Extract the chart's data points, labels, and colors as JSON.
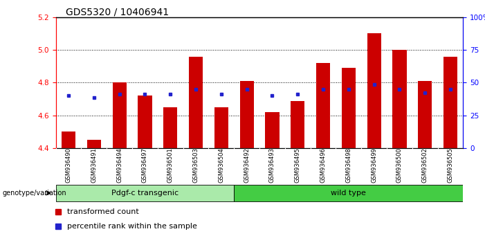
{
  "title": "GDS5320 / 10406941",
  "samples": [
    "GSM936490",
    "GSM936491",
    "GSM936494",
    "GSM936497",
    "GSM936501",
    "GSM936503",
    "GSM936504",
    "GSM936492",
    "GSM936493",
    "GSM936495",
    "GSM936496",
    "GSM936498",
    "GSM936499",
    "GSM936500",
    "GSM936502",
    "GSM936505"
  ],
  "bar_heights": [
    4.5,
    4.45,
    4.8,
    4.72,
    4.65,
    4.96,
    4.65,
    4.81,
    4.62,
    4.69,
    4.92,
    4.89,
    5.1,
    5.0,
    4.81,
    4.96
  ],
  "percentile_values": [
    4.72,
    4.71,
    4.73,
    4.73,
    4.73,
    4.76,
    4.73,
    4.76,
    4.72,
    4.73,
    4.76,
    4.76,
    4.79,
    4.76,
    4.74,
    4.76
  ],
  "bar_bottom": 4.4,
  "ylim_left": [
    4.4,
    5.2
  ],
  "ylim_right": [
    0,
    100
  ],
  "yticks_left": [
    4.4,
    4.6,
    4.8,
    5.0,
    5.2
  ],
  "yticks_right": [
    0,
    25,
    50,
    75,
    100
  ],
  "ytick_right_labels": [
    "0",
    "25",
    "50",
    "75",
    "100%"
  ],
  "bar_color": "#cc0000",
  "percentile_color": "#2222cc",
  "group1_label": "Pdgf-c transgenic",
  "group1_n": 7,
  "group2_label": "wild type",
  "group2_n": 9,
  "group_label_prefix": "genotype/variation",
  "group1_color": "#aaeaaa",
  "group2_color": "#44cc44",
  "legend_bar_label": "transformed count",
  "legend_pct_label": "percentile rank within the sample",
  "bg_color": "#ffffff",
  "tick_label_bg": "#c8c8c8",
  "title_fontsize": 10,
  "axis_fontsize": 7.5,
  "sample_fontsize": 6,
  "legend_fontsize": 8,
  "group_fontsize": 8
}
